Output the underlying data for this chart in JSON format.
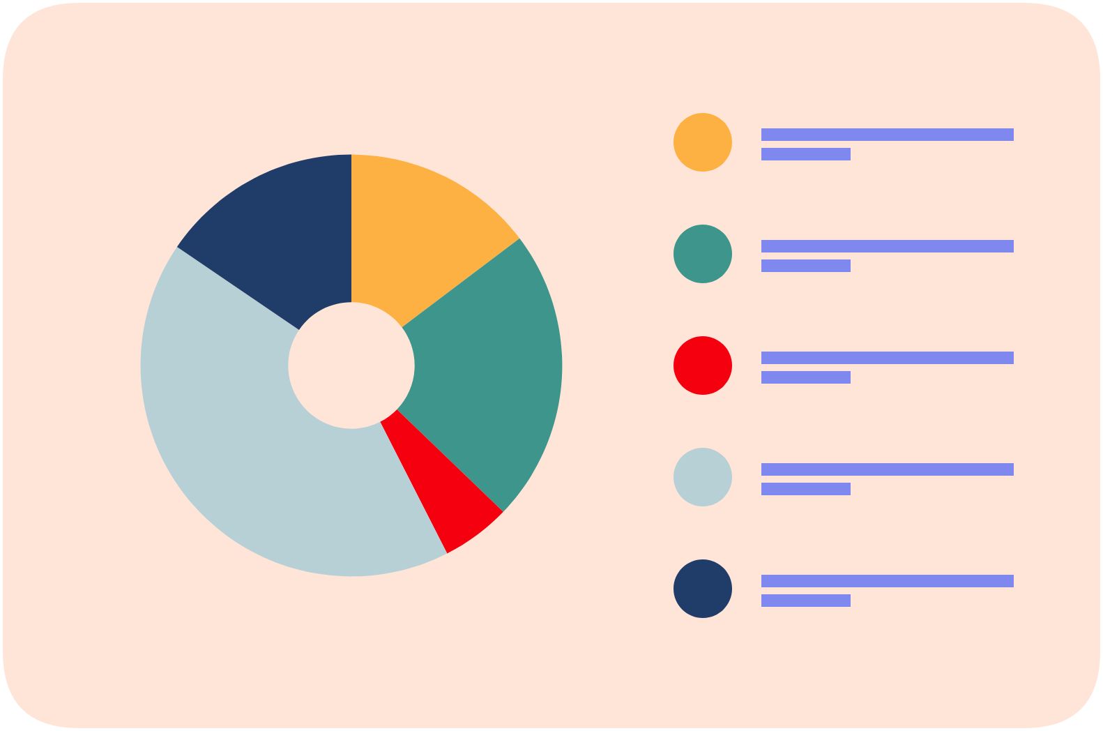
{
  "chart_data": {
    "type": "donut",
    "categories": [
      null,
      null,
      null,
      null,
      null
    ],
    "values": [
      14.7,
      22.5,
      5.3,
      42.0,
      15.5
    ],
    "colors": [
      "#fdb143",
      "#3d958b",
      "#f5000f",
      "#b7d0d5",
      "#203c69"
    ]
  }
}
